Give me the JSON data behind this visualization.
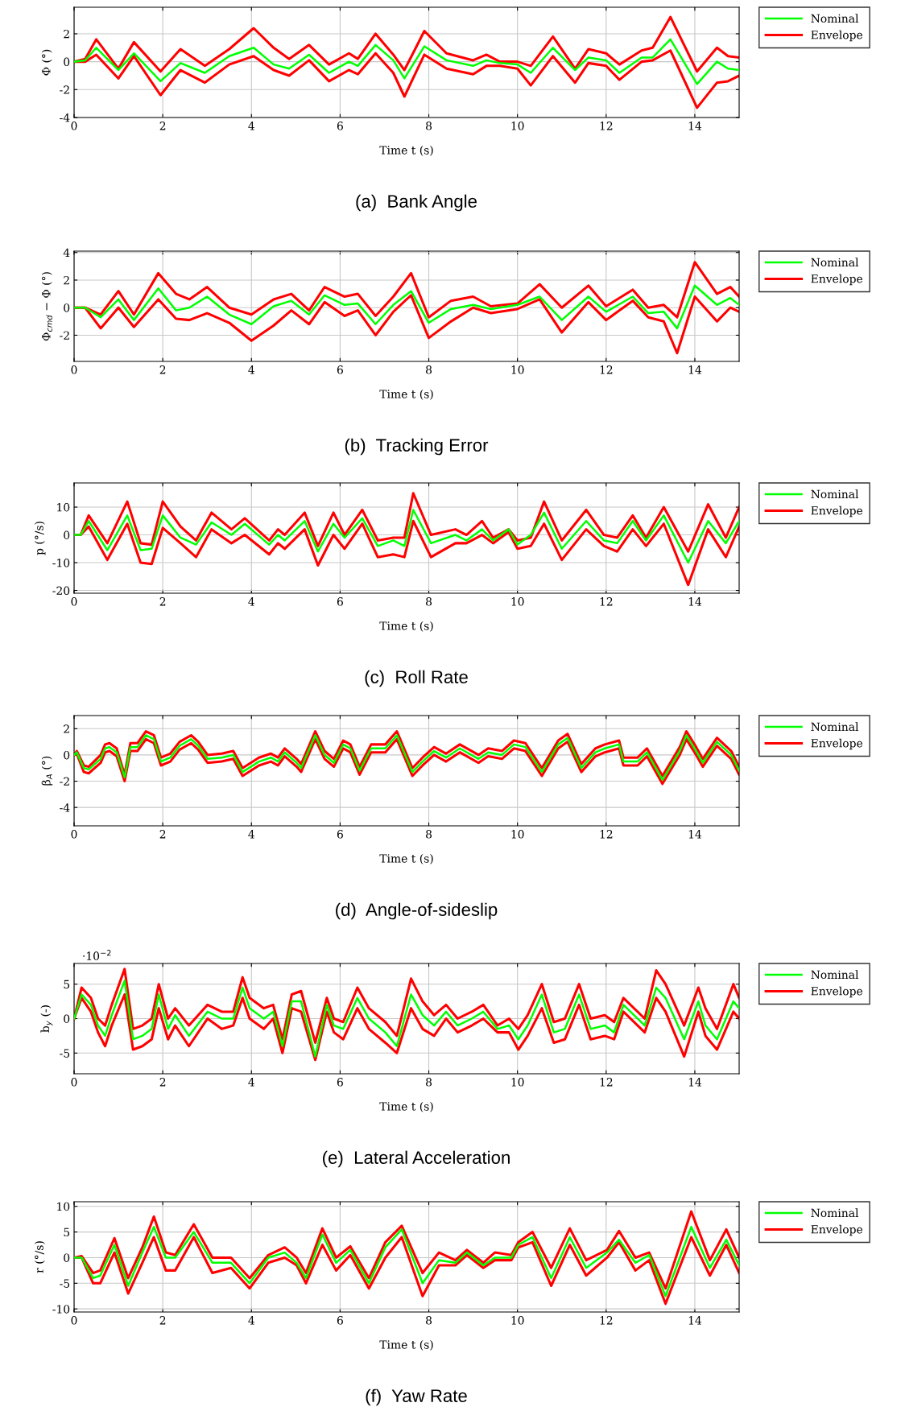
{
  "chart_data": [
    {
      "type": "line",
      "title": "(a)  Bank Angle",
      "xlabel": "Time t (s)",
      "ylabel": "Φ (°)",
      "xlim": [
        0,
        15
      ],
      "xticks": [
        0,
        2,
        4,
        6,
        8,
        10,
        12,
        14
      ],
      "ylim": [
        -4,
        3.9
      ],
      "yticks": [
        -4,
        -2,
        0,
        2
      ],
      "grid": true,
      "legend": "right",
      "x": [
        0,
        0.25,
        0.5,
        1.0,
        1.35,
        1.95,
        2.4,
        2.95,
        3.5,
        4.05,
        4.5,
        4.85,
        5.3,
        5.75,
        6.2,
        6.4,
        6.8,
        7.2,
        7.45,
        7.9,
        8.4,
        9.0,
        9.3,
        9.6,
        10.0,
        10.3,
        10.8,
        11.3,
        11.6,
        12.0,
        12.3,
        12.8,
        13.05,
        13.45,
        14.05,
        14.5,
        14.75,
        15
      ],
      "series": [
        {
          "name": "Nominal",
          "color": "#00ff00",
          "values": [
            0,
            0.1,
            1.0,
            -0.6,
            0.6,
            -1.4,
            -0.1,
            -0.8,
            0.4,
            1.0,
            -0.2,
            -0.5,
            0.5,
            -0.8,
            0.0,
            -0.3,
            1.2,
            0.1,
            -1.2,
            1.1,
            0.1,
            -0.3,
            0.1,
            -0.1,
            -0.2,
            -0.8,
            1.0,
            -0.6,
            0.3,
            0.1,
            -0.8,
            0.3,
            0.3,
            1.6,
            -1.6,
            0.0,
            -0.5,
            -0.6
          ]
        },
        {
          "name": "Envelope",
          "color": "#ff0000",
          "values": [
            0,
            0.2,
            1.6,
            -0.5,
            1.4,
            -0.7,
            0.9,
            -0.3,
            0.9,
            2.4,
            1.0,
            0.2,
            1.2,
            -0.2,
            0.6,
            0.2,
            2.0,
            0.5,
            -0.6,
            2.2,
            0.6,
            0.1,
            0.5,
            0.0,
            0.0,
            -0.3,
            1.8,
            -0.5,
            0.9,
            0.6,
            -0.2,
            0.8,
            1.0,
            3.2,
            -0.7,
            1.0,
            0.4,
            0.3
          ]
        },
        {
          "color": "#ff0000",
          "values": [
            0,
            0.0,
            0.5,
            -1.2,
            0.4,
            -2.4,
            -0.6,
            -1.5,
            -0.2,
            0.4,
            -0.6,
            -1.0,
            0.1,
            -1.4,
            -0.6,
            -0.9,
            0.6,
            -0.8,
            -2.5,
            0.5,
            -0.5,
            -0.9,
            -0.3,
            -0.3,
            -0.5,
            -1.7,
            0.4,
            -1.5,
            -0.1,
            -0.3,
            -1.3,
            0.0,
            0.1,
            0.8,
            -3.3,
            -1.5,
            -1.4,
            -1.0
          ]
        }
      ]
    },
    {
      "type": "line",
      "title": "(b)  Tracking Error",
      "xlabel": "Time t (s)",
      "ylabel": "Φ$_{cmd}$ − Φ (°)",
      "xlim": [
        0,
        15
      ],
      "xticks": [
        0,
        2,
        4,
        6,
        8,
        10,
        12,
        14
      ],
      "ylim": [
        -3.9,
        4.1
      ],
      "yticks": [
        -2,
        0,
        2,
        4
      ],
      "grid": true,
      "legend": "right",
      "x": [
        0,
        0.25,
        0.6,
        1.0,
        1.35,
        1.9,
        2.3,
        2.6,
        3.0,
        3.5,
        4.0,
        4.5,
        4.9,
        5.3,
        5.65,
        6.1,
        6.4,
        6.8,
        7.2,
        7.6,
        8.0,
        8.5,
        9.0,
        9.4,
        10.0,
        10.5,
        11.0,
        11.6,
        12.0,
        12.6,
        12.95,
        13.3,
        13.6,
        14.0,
        14.5,
        14.8,
        15
      ],
      "series": [
        {
          "name": "Nominal",
          "color": "#00ff00",
          "values": [
            0,
            0,
            -0.7,
            0.6,
            -0.9,
            1.4,
            -0.2,
            0.0,
            0.8,
            -0.5,
            -1.2,
            0.1,
            0.5,
            -0.5,
            0.9,
            0.2,
            0.3,
            -1.2,
            0.2,
            1.2,
            -1.1,
            -0.1,
            0.2,
            -0.1,
            0.2,
            0.8,
            -0.9,
            0.8,
            -0.3,
            0.8,
            -0.4,
            -0.3,
            -1.5,
            1.6,
            0.2,
            0.7,
            0.2
          ]
        },
        {
          "name": "Envelope",
          "color": "#ff0000",
          "values": [
            0,
            0,
            -0.5,
            1.2,
            -0.5,
            2.5,
            1.0,
            0.6,
            1.5,
            0.0,
            -0.5,
            0.6,
            1.0,
            -0.2,
            1.5,
            0.8,
            1.0,
            -0.6,
            0.8,
            2.5,
            -0.7,
            0.5,
            0.8,
            0.1,
            0.3,
            1.7,
            0.0,
            1.6,
            0.1,
            1.3,
            0.0,
            0.2,
            -0.7,
            3.3,
            1.0,
            1.5,
            0.8
          ]
        },
        {
          "color": "#ff0000",
          "values": [
            0,
            0,
            -1.5,
            0,
            -1.4,
            0.6,
            -0.8,
            -0.9,
            -0.4,
            -1.1,
            -2.4,
            -1.3,
            -0.2,
            -1.2,
            0.4,
            -0.6,
            -0.2,
            -2.0,
            -0.3,
            0.9,
            -2.2,
            -1.0,
            0,
            -0.4,
            -0.1,
            0.6,
            -1.8,
            0.4,
            -0.9,
            0.5,
            -0.7,
            -1.0,
            -3.3,
            0.8,
            -1.0,
            0,
            -0.3
          ]
        }
      ]
    },
    {
      "type": "line",
      "title": "(c)  Roll Rate",
      "xlabel": "Time t (s)",
      "ylabel": "p (°/s)",
      "xlim": [
        0,
        15
      ],
      "xticks": [
        0,
        2,
        4,
        6,
        8,
        10,
        12,
        14
      ],
      "ylim": [
        -21,
        18.7
      ],
      "yticks": [
        -20,
        -10,
        0,
        10
      ],
      "grid": true,
      "legend": "right",
      "x": [
        0,
        0.15,
        0.33,
        0.75,
        1.2,
        1.5,
        1.75,
        2.0,
        2.4,
        2.75,
        3.1,
        3.55,
        3.85,
        4.4,
        4.6,
        4.75,
        5.2,
        5.5,
        5.85,
        6.1,
        6.5,
        6.85,
        7.2,
        7.45,
        7.65,
        8.05,
        8.6,
        8.85,
        9.2,
        9.45,
        9.8,
        10.0,
        10.3,
        10.6,
        11.0,
        11.55,
        11.95,
        12.25,
        12.6,
        12.9,
        13.3,
        13.85,
        14.3,
        14.7,
        15
      ],
      "series": [
        {
          "name": "Nominal",
          "color": "#00ff00",
          "values": [
            0,
            0,
            5,
            -5.5,
            7,
            -5.5,
            -5,
            7,
            -1,
            -3.5,
            4.5,
            0,
            4,
            -3.5,
            0,
            -2,
            5,
            -6,
            4,
            -1,
            6,
            -4,
            -2,
            -4,
            9,
            -3,
            0,
            -2,
            2,
            -2,
            2,
            -3.5,
            0,
            8,
            -5,
            5,
            -2,
            -3,
            5,
            -2,
            7,
            -10,
            5,
            -3,
            5
          ]
        },
        {
          "name": "Envelope",
          "color": "#ff0000",
          "values": [
            0,
            0,
            7,
            -3,
            12,
            -3,
            -3.5,
            12,
            3,
            -2,
            8,
            2,
            6,
            -2,
            2,
            0,
            8,
            -4,
            8,
            0,
            9,
            -2,
            -1,
            -1,
            15,
            0,
            2,
            0,
            5,
            -1,
            2,
            -2,
            -1,
            12,
            -2,
            9,
            0,
            -1,
            7,
            -1,
            10,
            -6,
            11,
            -1,
            10
          ]
        },
        {
          "color": "#ff0000",
          "values": [
            0,
            0,
            3,
            -9,
            4,
            -10,
            -10.5,
            2.5,
            -3,
            -8,
            2,
            -3,
            0,
            -7,
            -3,
            -5,
            2,
            -11,
            0,
            -5,
            4,
            -8,
            -7,
            -8,
            5,
            -8,
            -3,
            -3,
            0,
            -3,
            1,
            -5,
            -4,
            4,
            -9,
            2,
            -4,
            -6,
            2,
            -4,
            4,
            -18,
            2,
            -8,
            3
          ]
        }
      ]
    },
    {
      "type": "line",
      "title": "(d)  Angle-of-sideslip",
      "xlabel": "Time t (s)",
      "ylabel": "β$_{A}$ (°)",
      "xlim": [
        0,
        15
      ],
      "xticks": [
        0,
        2,
        4,
        6,
        8,
        10,
        12,
        14
      ],
      "ylim": [
        -5.4,
        3.0
      ],
      "yticks": [
        -4,
        -2,
        0,
        2
      ],
      "grid": true,
      "legend": "right",
      "x": [
        0,
        0.06,
        0.22,
        0.33,
        0.6,
        0.7,
        0.8,
        0.96,
        1.14,
        1.27,
        1.43,
        1.62,
        1.8,
        1.96,
        2.17,
        2.38,
        2.64,
        2.8,
        3.01,
        3.33,
        3.59,
        3.8,
        4.17,
        4.44,
        4.6,
        4.75,
        5.02,
        5.12,
        5.44,
        5.65,
        5.86,
        6.07,
        6.23,
        6.44,
        6.7,
        7.02,
        7.28,
        7.63,
        7.86,
        8.12,
        8.39,
        8.7,
        9.12,
        9.34,
        9.65,
        9.92,
        10.18,
        10.55,
        10.92,
        11.13,
        11.44,
        11.76,
        11.97,
        12.29,
        12.39,
        12.71,
        12.92,
        13.27,
        13.66,
        13.81,
        14.03,
        14.18,
        14.5,
        14.82,
        15
      ],
      "series": [
        {
          "name": "Nominal",
          "color": "#00ff00",
          "values": [
            0,
            0.2,
            -1.0,
            -1.1,
            -0.3,
            0.5,
            0.6,
            0.2,
            -1.7,
            0.6,
            0.6,
            1.5,
            1.2,
            -0.5,
            -0.2,
            0.7,
            1.2,
            0.7,
            -0.3,
            -0.2,
            0.0,
            -1.3,
            -0.5,
            -0.2,
            -0.5,
            0.2,
            -0.6,
            -1.0,
            1.5,
            0.0,
            -0.6,
            0.8,
            0.5,
            -1.2,
            0.5,
            0.5,
            1.5,
            -1.3,
            -0.5,
            0.3,
            -0.2,
            0.5,
            -0.3,
            0.2,
            0.0,
            0.8,
            0.6,
            -1.3,
            0.8,
            1.3,
            -1.0,
            0.2,
            0.5,
            0.8,
            -0.5,
            -0.5,
            0.2,
            -1.9,
            0.3,
            1.5,
            0.3,
            -0.6,
            1.0,
            0.0,
            -1.2
          ]
        },
        {
          "name": "Envelope",
          "color": "#ff0000",
          "values": [
            0,
            0.3,
            -0.8,
            -0.9,
            0.0,
            0.8,
            0.9,
            0.5,
            -1.5,
            0.9,
            0.9,
            1.8,
            1.5,
            -0.2,
            0.1,
            1.0,
            1.5,
            1.0,
            0.0,
            0.1,
            0.3,
            -1.0,
            -0.2,
            0.1,
            -0.2,
            0.5,
            -0.3,
            -0.7,
            1.8,
            0.3,
            -0.3,
            1.1,
            0.8,
            -0.9,
            0.8,
            0.8,
            1.8,
            -1.0,
            -0.2,
            0.6,
            0.1,
            0.8,
            0.0,
            0.5,
            0.3,
            1.1,
            0.9,
            -1.0,
            1.1,
            1.6,
            -0.7,
            0.5,
            0.8,
            1.1,
            -0.2,
            -0.2,
            0.5,
            -1.6,
            0.6,
            1.8,
            0.6,
            -0.3,
            1.3,
            0.3,
            -0.9
          ]
        },
        {
          "color": "#ff0000",
          "values": [
            0,
            0.1,
            -1.3,
            -1.4,
            -0.6,
            0.2,
            0.3,
            -0.1,
            -2.0,
            0.3,
            0.3,
            1.2,
            0.9,
            -0.8,
            -0.5,
            0.4,
            0.9,
            0.4,
            -0.6,
            -0.5,
            -0.3,
            -1.6,
            -0.8,
            -0.5,
            -0.8,
            -0.1,
            -0.9,
            -1.3,
            1.2,
            -0.3,
            -0.9,
            0.5,
            0.2,
            -1.5,
            0.2,
            0.2,
            1.2,
            -1.6,
            -0.8,
            0.0,
            -0.5,
            0.2,
            -0.6,
            -0.1,
            -0.3,
            0.5,
            0.3,
            -1.6,
            0.5,
            1.0,
            -1.3,
            -0.1,
            0.2,
            0.5,
            -0.8,
            -0.8,
            -0.1,
            -2.2,
            0.0,
            1.2,
            0.0,
            -0.9,
            0.7,
            -0.3,
            -1.5
          ]
        }
      ]
    },
    {
      "type": "line",
      "title": "(e)  Lateral Acceleration",
      "xlabel": "Time t (s)",
      "ylabel": "b$_{y}$ (-)",
      "annotations": [
        "·10$^{−2}$"
      ],
      "xlim": [
        0,
        15
      ],
      "xticks": [
        0,
        2,
        4,
        6,
        8,
        10,
        12,
        14
      ],
      "ylim": [
        -8,
        8
      ],
      "yticks": [
        -5,
        0,
        5
      ],
      "grid": true,
      "legend": "right",
      "x": [
        0,
        0.17,
        0.38,
        0.54,
        0.7,
        0.85,
        1.14,
        1.33,
        1.54,
        1.75,
        1.91,
        2.12,
        2.28,
        2.59,
        3.01,
        3.33,
        3.59,
        3.8,
        3.96,
        4.28,
        4.49,
        4.7,
        4.91,
        5.12,
        5.44,
        5.7,
        5.86,
        6.07,
        6.39,
        6.65,
        7.02,
        7.28,
        7.6,
        7.86,
        8.12,
        8.39,
        8.65,
        8.97,
        9.23,
        9.55,
        9.81,
        10.02,
        10.23,
        10.55,
        10.82,
        11.07,
        11.39,
        11.65,
        11.97,
        12.18,
        12.39,
        12.87,
        13.13,
        13.34,
        13.76,
        14.08,
        14.24,
        14.5,
        14.87,
        15
      ],
      "series": [
        {
          "name": "Nominal",
          "color": "#00ff00",
          "values": [
            0,
            3.5,
            2,
            -1,
            -2.5,
            0.5,
            5.5,
            -3,
            -2.5,
            -1.5,
            3.5,
            -1.5,
            0.5,
            -2.5,
            1,
            0,
            0,
            4.5,
            1.5,
            0,
            1,
            -4,
            2.5,
            2.5,
            -5.5,
            2,
            -1,
            -1.5,
            3,
            0,
            -2,
            -4,
            3.5,
            0.5,
            -1,
            1,
            -1,
            0,
            1,
            -1.5,
            -1,
            -3,
            -1,
            3.5,
            -2,
            -1.5,
            3.5,
            -1.5,
            -1,
            -2,
            2,
            -1,
            4.5,
            3,
            -3,
            2.5,
            -1,
            -3,
            2.5,
            1.5
          ]
        },
        {
          "name": "Envelope",
          "color": "#ff0000",
          "values": [
            0,
            4.5,
            3,
            0,
            -1,
            2,
            7.2,
            -1.5,
            -1,
            0,
            5,
            0,
            1.5,
            -1,
            2,
            1,
            1,
            6,
            3,
            1.5,
            2,
            -3,
            3.5,
            4,
            -3.5,
            3,
            0,
            -0.5,
            4.5,
            1.5,
            -0.5,
            -2.5,
            5.8,
            2.5,
            0.5,
            2,
            0,
            1,
            2,
            -1,
            0,
            -1.5,
            0.5,
            5,
            -0.5,
            0,
            5,
            0,
            0.5,
            -0.5,
            3,
            0,
            7,
            5,
            -1,
            4.5,
            1.5,
            -1.5,
            5,
            3
          ]
        },
        {
          "color": "#ff0000",
          "values": [
            0,
            3,
            1,
            -2,
            -4,
            -1,
            3.5,
            -4.5,
            -4,
            -3,
            1.5,
            -3,
            -1,
            -4,
            0,
            -1.5,
            -1,
            3,
            0,
            -1.5,
            0,
            -5,
            1.5,
            1,
            -6,
            1,
            -2,
            -3,
            1.5,
            -1.5,
            -3.5,
            -5,
            1.5,
            -1.5,
            -2.5,
            0,
            -2,
            -1,
            0,
            -2,
            -2,
            -4.5,
            -2.5,
            1.5,
            -3.5,
            -3,
            2,
            -3,
            -2.5,
            -3,
            1,
            -2,
            3,
            1,
            -5.5,
            1,
            -2.5,
            -4.5,
            1,
            0
          ]
        }
      ]
    },
    {
      "type": "line",
      "title": "(f)  Yaw Rate",
      "xlabel": "Time t (s)",
      "ylabel": "r (°/s)",
      "xlim": [
        0,
        15
      ],
      "xticks": [
        0,
        2,
        4,
        6,
        8,
        10,
        12,
        14
      ],
      "ylim": [
        -10.6,
        10.9
      ],
      "yticks": [
        -10,
        -5,
        0,
        5,
        10
      ],
      "grid": true,
      "legend": "right",
      "x": [
        0,
        0.17,
        0.43,
        0.59,
        0.91,
        1.22,
        1.54,
        1.8,
        2.07,
        2.28,
        2.7,
        3.12,
        3.54,
        3.96,
        4.38,
        4.75,
        5.02,
        5.23,
        5.6,
        5.91,
        6.23,
        6.65,
        7.02,
        7.39,
        7.86,
        8.23,
        8.6,
        8.86,
        9.23,
        9.49,
        9.86,
        10.02,
        10.34,
        10.76,
        11.18,
        11.55,
        12.02,
        12.29,
        12.66,
        12.97,
        13.34,
        13.92,
        14.34,
        14.71,
        15
      ],
      "series": [
        {
          "name": "Nominal",
          "color": "#00ff00",
          "values": [
            0,
            0,
            -4,
            -3.5,
            2.5,
            -5.5,
            1,
            6,
            0,
            0,
            5,
            -1,
            -1,
            -5,
            0,
            1,
            -1,
            -4,
            4.5,
            -1,
            1.5,
            -5,
            2,
            5.5,
            -5,
            -0.5,
            -1,
            1,
            -1.5,
            0,
            0,
            2.5,
            4,
            -4,
            4,
            -2,
            1,
            3.5,
            -1,
            0.5,
            -7.5,
            6,
            -2,
            3.5,
            -1.5
          ]
        },
        {
          "name": "Envelope",
          "color": "#ff0000",
          "values": [
            0,
            0.3,
            -3,
            -2.5,
            3.8,
            -4,
            2,
            8,
            1,
            0.5,
            6.5,
            0,
            0,
            -4,
            0.5,
            2,
            0,
            -3,
            5.7,
            0,
            2.2,
            -4,
            3,
            6.2,
            -3,
            1,
            -0.5,
            1.5,
            -1,
            1,
            0.5,
            3,
            5,
            -2,
            5.7,
            -0.5,
            1.5,
            5.2,
            0,
            1,
            -6,
            9,
            -0.5,
            5.5,
            0
          ]
        },
        {
          "color": "#ff0000",
          "values": [
            0,
            0,
            -5,
            -5,
            1,
            -7,
            -1,
            4,
            -2.5,
            -2.5,
            4,
            -3,
            -2,
            -6,
            -1,
            0,
            -1.5,
            -5,
            2.5,
            -2.5,
            0.5,
            -6,
            0,
            4,
            -7.5,
            -1.5,
            -1.5,
            0.5,
            -2,
            -0.5,
            -0.5,
            2,
            3,
            -5.5,
            2.5,
            -3.5,
            0,
            3,
            -2.5,
            -0.5,
            -9,
            4,
            -3.5,
            2.5,
            -3
          ]
        }
      ]
    }
  ]
}
